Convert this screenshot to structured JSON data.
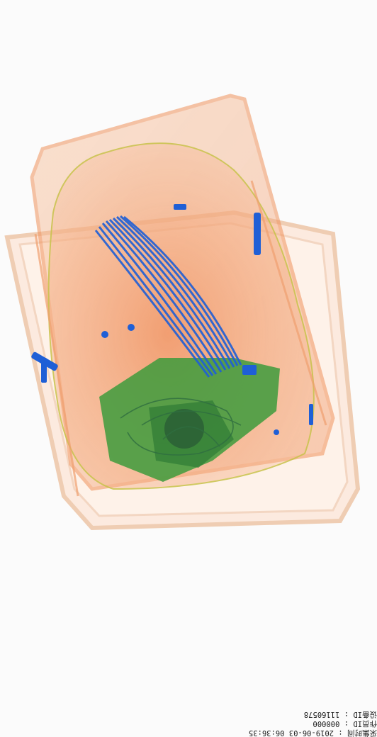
{
  "image": {
    "description": "X-ray baggage scan",
    "colors": {
      "background": "#fbfbfb",
      "organic_orange": "#f29a6a",
      "inorganic_green": "#3c9a3c",
      "metal_blue": "#1f5fd6",
      "outline": "#e8c6a8"
    }
  },
  "overlay": {
    "operator_label": "作员ID",
    "operator_value": "000000",
    "time_label": "采集时间",
    "time_value": "2019-06-03 06:36:35",
    "device_label": "设备ID",
    "device_value": "11160578"
  }
}
